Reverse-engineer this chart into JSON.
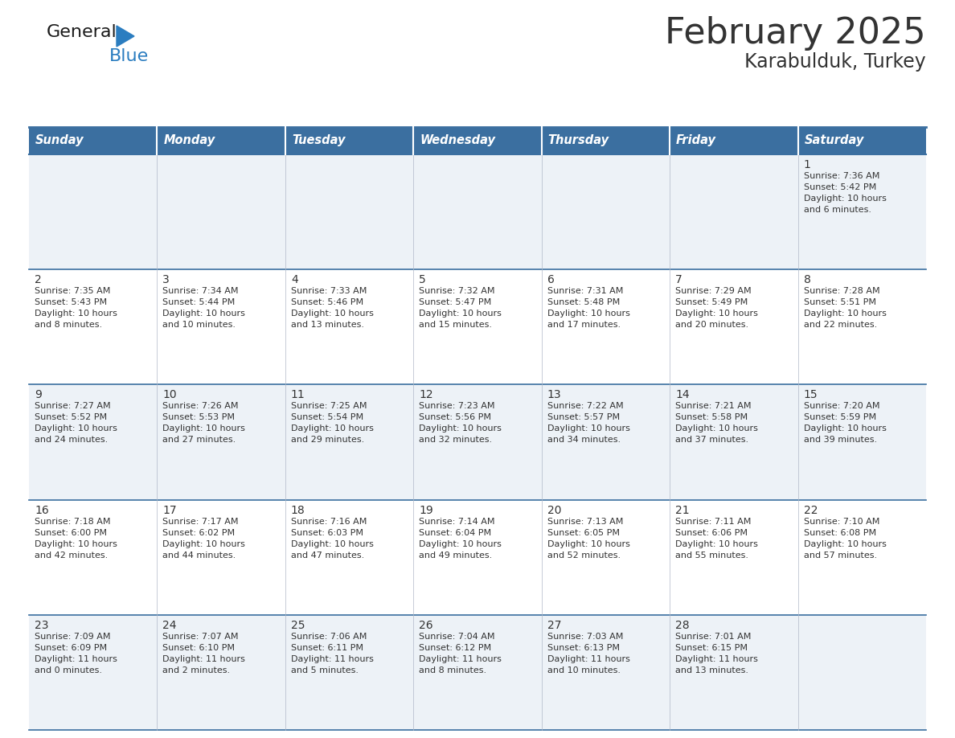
{
  "title": "February 2025",
  "subtitle": "Karabulduk, Turkey",
  "header_color": "#3b6fa0",
  "header_text_color": "#ffffff",
  "days_of_week": [
    "Sunday",
    "Monday",
    "Tuesday",
    "Wednesday",
    "Thursday",
    "Friday",
    "Saturday"
  ],
  "alt_row_color": "#edf2f7",
  "white_color": "#ffffff",
  "border_color": "#3b6fa0",
  "text_color": "#333333",
  "day_num_color": "#333333",
  "logo_general_color": "#1a1a1a",
  "logo_blue_color": "#2b7dc0",
  "calendar_data": [
    [
      null,
      null,
      null,
      null,
      null,
      null,
      {
        "day": 1,
        "sunrise": "7:36 AM",
        "sunset": "5:42 PM",
        "daylight": "10 hours\nand 6 minutes."
      }
    ],
    [
      {
        "day": 2,
        "sunrise": "7:35 AM",
        "sunset": "5:43 PM",
        "daylight": "10 hours\nand 8 minutes."
      },
      {
        "day": 3,
        "sunrise": "7:34 AM",
        "sunset": "5:44 PM",
        "daylight": "10 hours\nand 10 minutes."
      },
      {
        "day": 4,
        "sunrise": "7:33 AM",
        "sunset": "5:46 PM",
        "daylight": "10 hours\nand 13 minutes."
      },
      {
        "day": 5,
        "sunrise": "7:32 AM",
        "sunset": "5:47 PM",
        "daylight": "10 hours\nand 15 minutes."
      },
      {
        "day": 6,
        "sunrise": "7:31 AM",
        "sunset": "5:48 PM",
        "daylight": "10 hours\nand 17 minutes."
      },
      {
        "day": 7,
        "sunrise": "7:29 AM",
        "sunset": "5:49 PM",
        "daylight": "10 hours\nand 20 minutes."
      },
      {
        "day": 8,
        "sunrise": "7:28 AM",
        "sunset": "5:51 PM",
        "daylight": "10 hours\nand 22 minutes."
      }
    ],
    [
      {
        "day": 9,
        "sunrise": "7:27 AM",
        "sunset": "5:52 PM",
        "daylight": "10 hours\nand 24 minutes."
      },
      {
        "day": 10,
        "sunrise": "7:26 AM",
        "sunset": "5:53 PM",
        "daylight": "10 hours\nand 27 minutes."
      },
      {
        "day": 11,
        "sunrise": "7:25 AM",
        "sunset": "5:54 PM",
        "daylight": "10 hours\nand 29 minutes."
      },
      {
        "day": 12,
        "sunrise": "7:23 AM",
        "sunset": "5:56 PM",
        "daylight": "10 hours\nand 32 minutes."
      },
      {
        "day": 13,
        "sunrise": "7:22 AM",
        "sunset": "5:57 PM",
        "daylight": "10 hours\nand 34 minutes."
      },
      {
        "day": 14,
        "sunrise": "7:21 AM",
        "sunset": "5:58 PM",
        "daylight": "10 hours\nand 37 minutes."
      },
      {
        "day": 15,
        "sunrise": "7:20 AM",
        "sunset": "5:59 PM",
        "daylight": "10 hours\nand 39 minutes."
      }
    ],
    [
      {
        "day": 16,
        "sunrise": "7:18 AM",
        "sunset": "6:00 PM",
        "daylight": "10 hours\nand 42 minutes."
      },
      {
        "day": 17,
        "sunrise": "7:17 AM",
        "sunset": "6:02 PM",
        "daylight": "10 hours\nand 44 minutes."
      },
      {
        "day": 18,
        "sunrise": "7:16 AM",
        "sunset": "6:03 PM",
        "daylight": "10 hours\nand 47 minutes."
      },
      {
        "day": 19,
        "sunrise": "7:14 AM",
        "sunset": "6:04 PM",
        "daylight": "10 hours\nand 49 minutes."
      },
      {
        "day": 20,
        "sunrise": "7:13 AM",
        "sunset": "6:05 PM",
        "daylight": "10 hours\nand 52 minutes."
      },
      {
        "day": 21,
        "sunrise": "7:11 AM",
        "sunset": "6:06 PM",
        "daylight": "10 hours\nand 55 minutes."
      },
      {
        "day": 22,
        "sunrise": "7:10 AM",
        "sunset": "6:08 PM",
        "daylight": "10 hours\nand 57 minutes."
      }
    ],
    [
      {
        "day": 23,
        "sunrise": "7:09 AM",
        "sunset": "6:09 PM",
        "daylight": "11 hours\nand 0 minutes."
      },
      {
        "day": 24,
        "sunrise": "7:07 AM",
        "sunset": "6:10 PM",
        "daylight": "11 hours\nand 2 minutes."
      },
      {
        "day": 25,
        "sunrise": "7:06 AM",
        "sunset": "6:11 PM",
        "daylight": "11 hours\nand 5 minutes."
      },
      {
        "day": 26,
        "sunrise": "7:04 AM",
        "sunset": "6:12 PM",
        "daylight": "11 hours\nand 8 minutes."
      },
      {
        "day": 27,
        "sunrise": "7:03 AM",
        "sunset": "6:13 PM",
        "daylight": "11 hours\nand 10 minutes."
      },
      {
        "day": 28,
        "sunrise": "7:01 AM",
        "sunset": "6:15 PM",
        "daylight": "11 hours\nand 13 minutes."
      },
      null
    ]
  ]
}
